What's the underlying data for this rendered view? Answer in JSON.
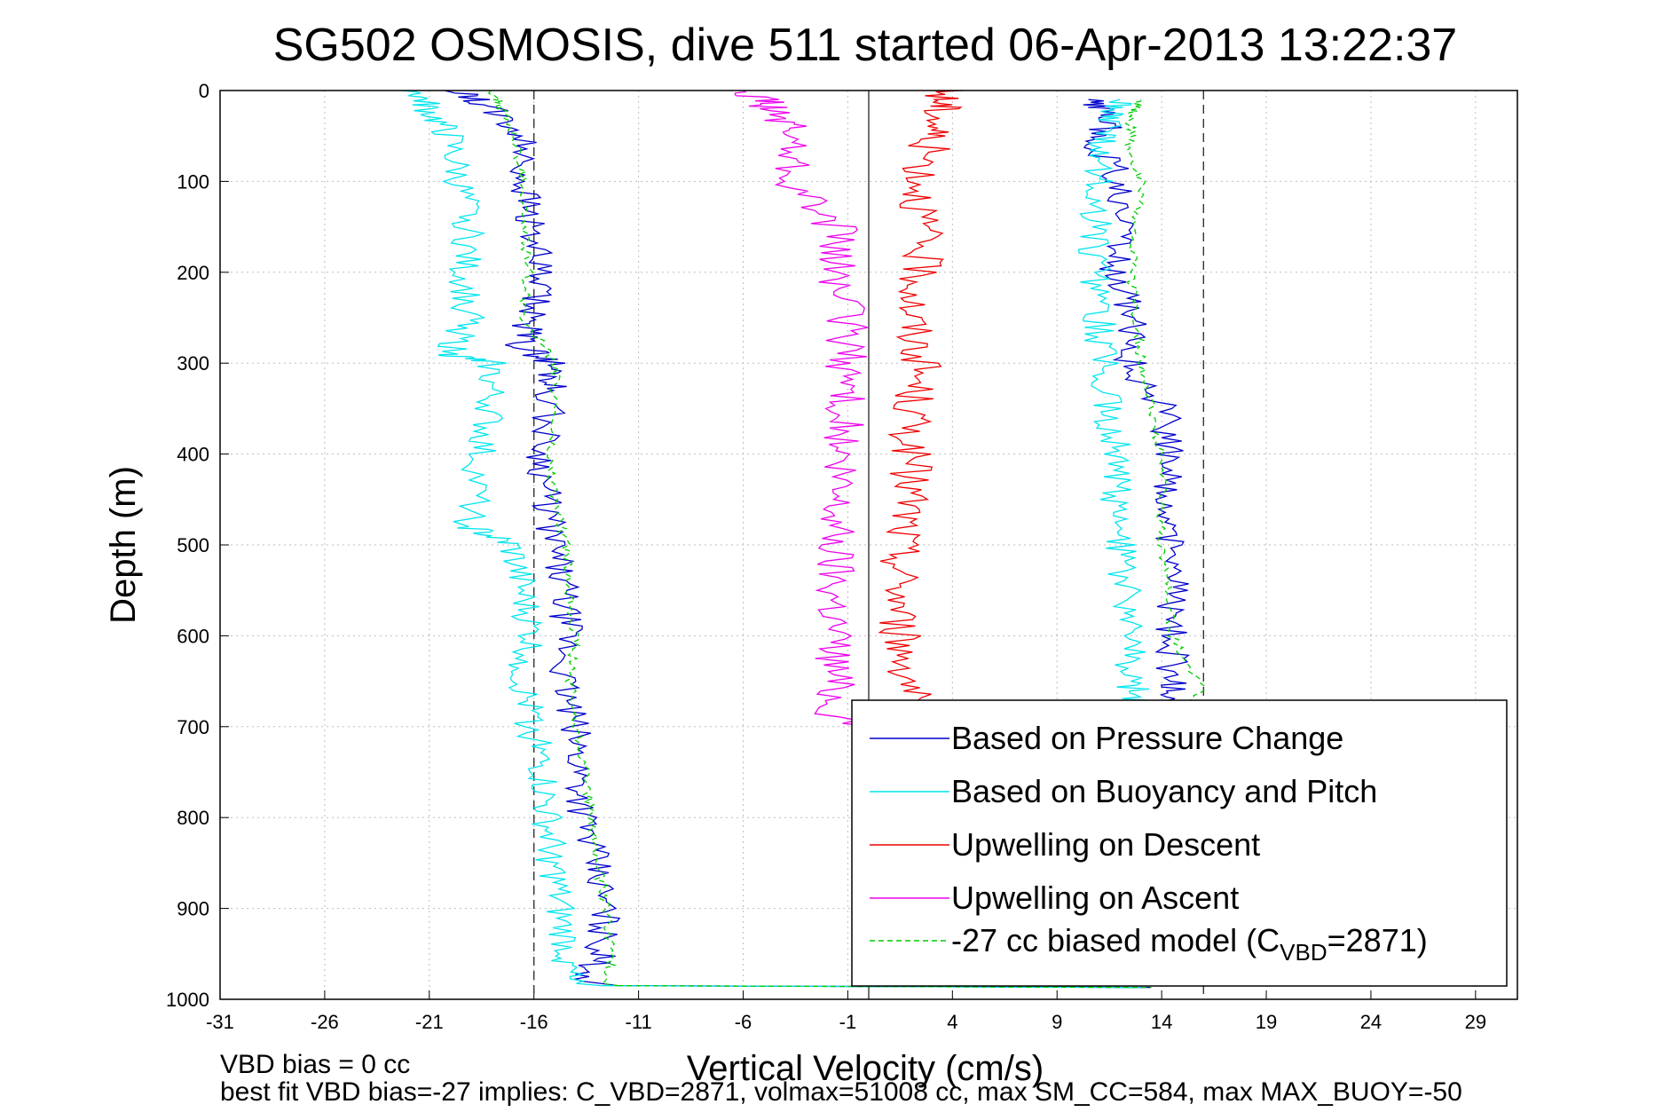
{
  "chart_data": {
    "type": "line",
    "title": "SG502 OSMOSIS, dive 511 started 06-Apr-2013 13:22:37",
    "xlabel": "Vertical Velocity (cm/s)",
    "ylabel": "Depth (m)",
    "xlim": [
      -31,
      31
    ],
    "ylim": [
      1000,
      0
    ],
    "y_reversed": true,
    "xticks": [
      "-31",
      "-26",
      "-21",
      "-16",
      "-11",
      "-6",
      "-1",
      "4",
      "9",
      "14",
      "19",
      "24",
      "29"
    ],
    "yticks": [
      "0",
      "100",
      "200",
      "300",
      "400",
      "500",
      "600",
      "700",
      "800",
      "900",
      "1000"
    ],
    "grid": true,
    "legend_position": "bottom-right",
    "reference_lines": {
      "dashed_x": [
        -16,
        16
      ],
      "solid_x": [
        0
      ]
    },
    "footer_lines": [
      "VBD bias = 0 cc",
      "best fit VBD bias=-27 implies: C_VBD=2871, volmax=51008 cc, max SM_CC=584, max MAX_BUOY=-50"
    ],
    "series": [
      {
        "name": "Based on Pressure Change",
        "color": "#0000cc",
        "descent": {
          "depth": [
            0,
            20,
            50,
            100,
            150,
            200,
            250,
            280,
            300,
            330,
            400,
            450,
            500,
            550,
            600,
            650,
            700,
            750,
            800,
            850,
            900,
            950,
            985
          ],
          "velocity": [
            -18,
            -16.5,
            -15,
            -14.8,
            -14.5,
            -14.2,
            -14.5,
            -15,
            -13.5,
            -13.5,
            -14,
            -13.8,
            -13.5,
            -13,
            -12.8,
            -13,
            -12.5,
            -12.2,
            -12,
            -11.5,
            -11,
            -11.2,
            -12
          ]
        },
        "ascent": {
          "depth": [
            985,
            950,
            900,
            850,
            800,
            750,
            700,
            680,
            650,
            600,
            550,
            500,
            450,
            400,
            350,
            300,
            250,
            200,
            150,
            100,
            60,
            30,
            10
          ],
          "velocity": [
            13.5,
            14,
            14,
            14,
            14,
            14,
            14,
            14.5,
            14.5,
            14.5,
            14.5,
            14.5,
            14.2,
            14.5,
            14,
            12.5,
            12.5,
            11.8,
            12,
            12,
            11,
            11.5,
            10.5
          ]
        }
      },
      {
        "name": "Based on Buoyancy and Pitch",
        "color": "#00e5ee",
        "descent": {
          "depth": [
            0,
            20,
            50,
            100,
            150,
            200,
            250,
            290,
            300,
            350,
            400,
            480,
            500,
            550,
            600,
            650,
            700,
            750,
            800,
            850,
            900,
            950,
            985
          ],
          "velocity": [
            -20,
            -19.5,
            -18.5,
            -18,
            -17.5,
            -17.8,
            -17.5,
            -18.5,
            -16.5,
            -16.5,
            -17,
            -17.5,
            -15.5,
            -15,
            -14.5,
            -15,
            -14.5,
            -14,
            -13.8,
            -13.5,
            -13.2,
            -12.8,
            -12.8
          ]
        },
        "ascent": {
          "depth": [
            985,
            950,
            900,
            850,
            800,
            750,
            700,
            680,
            650,
            600,
            550,
            500,
            450,
            400,
            350,
            300,
            250,
            200,
            150,
            100,
            60,
            30,
            10
          ],
          "velocity": [
            13,
            13,
            13,
            13,
            13,
            12.8,
            12.8,
            13,
            12.5,
            12.5,
            12.3,
            12,
            11.8,
            11.8,
            11.5,
            11.2,
            11,
            10.8,
            10.8,
            11,
            11,
            11.5,
            12
          ]
        }
      },
      {
        "name": "Upwelling on Descent",
        "color": "#ee0000",
        "depth": [
          0,
          20,
          50,
          100,
          150,
          200,
          250,
          300,
          350,
          400,
          450,
          500,
          550,
          600,
          650,
          700
        ],
        "velocity": [
          3.5,
          3.5,
          3,
          2.5,
          2.5,
          2.5,
          2,
          2.5,
          2,
          2,
          2,
          1.5,
          1.5,
          1.5,
          2,
          2
        ]
      },
      {
        "name": "Upwelling on Ascent",
        "color": "#ee00ee",
        "depth": [
          0,
          20,
          50,
          100,
          150,
          200,
          250,
          300,
          350,
          400,
          450,
          500,
          550,
          600,
          650,
          700
        ],
        "velocity": [
          -3.5,
          -2.5,
          -1.5,
          -1.5,
          0.5,
          0.5,
          1,
          1,
          1,
          0.5,
          0.5,
          0.5,
          0.5,
          0.5,
          0.5,
          0.5
        ]
      },
      {
        "name": "-27 cc biased model (C",
        "name_sub": "VBD",
        "name_tail": "=2871)",
        "color": "#00cc00",
        "dashed": true,
        "descent": {
          "depth": [
            0,
            20,
            50,
            100,
            150,
            200,
            250,
            300,
            350,
            400,
            450,
            500,
            550,
            600,
            650,
            700,
            750,
            800,
            850,
            900,
            950,
            985
          ],
          "velocity": [
            -17.5,
            -17,
            -16.5,
            -16,
            -16,
            -15.8,
            -16,
            -14.5,
            -14.5,
            -14.8,
            -14.5,
            -14,
            -13.8,
            -13.5,
            -13.8,
            -13.5,
            -13,
            -12.8,
            -12.5,
            -12,
            -11.8,
            -12
          ]
        },
        "ascent": {
          "depth": [
            985,
            950,
            900,
            850,
            800,
            750,
            700,
            660,
            600,
            550,
            500,
            450,
            400,
            350,
            300,
            250,
            200,
            150,
            100,
            60,
            30,
            10
          ],
          "velocity": [
            13.5,
            14,
            14,
            14,
            14,
            14,
            14,
            16,
            14.5,
            14.3,
            14,
            14,
            14,
            13.5,
            13,
            12.8,
            12.5,
            12.8,
            13,
            12.5,
            12.5,
            13
          ]
        }
      }
    ]
  }
}
